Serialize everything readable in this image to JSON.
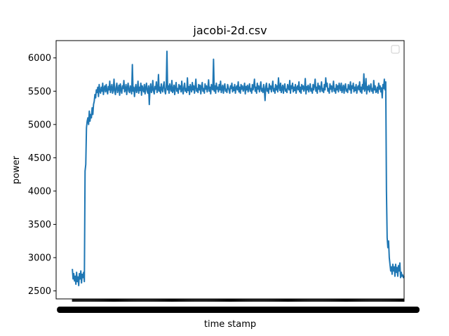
{
  "chart_data": {
    "type": "line",
    "title": "jacobi-2d.csv",
    "xlabel": "time stamp",
    "ylabel": "power",
    "ylim": [
      2380,
      6260
    ],
    "xlim": [
      -23,
      470
    ],
    "yticks": [
      2500,
      3000,
      3500,
      4000,
      4500,
      5000,
      5500,
      6000
    ],
    "grid": false,
    "legend": {
      "placement": "top-right",
      "entries": []
    },
    "x_tick_labels_note": "x tick labels are overlapping and unreadable",
    "series": [
      {
        "color": "#1f77b4",
        "x_start": 0,
        "x_step": 1,
        "values": [
          2830,
          2680,
          2760,
          2650,
          2720,
          2600,
          2780,
          2640,
          2710,
          2580,
          2760,
          2680,
          2800,
          2620,
          2750,
          2700,
          2780,
          2640,
          4300,
          4400,
          4950,
          5050,
          5100,
          5000,
          5200,
          5050,
          5150,
          5100,
          5250,
          5150,
          5300,
          5350,
          5450,
          5400,
          5520,
          5480,
          5560,
          5420,
          5600,
          5500,
          5470,
          5560,
          5500,
          5620,
          5450,
          5540,
          5580,
          5490,
          5600,
          5510,
          5460,
          5570,
          5520,
          5650,
          5480,
          5540,
          5600,
          5470,
          5520,
          5680,
          5500,
          5450,
          5560,
          5620,
          5480,
          5530,
          5590,
          5440,
          5610,
          5520,
          5470,
          5580,
          5540,
          5660,
          5490,
          5520,
          5600,
          5450,
          5550,
          5620,
          5500,
          5480,
          5580,
          5520,
          5460,
          5900,
          5500,
          5560,
          5420,
          5540,
          5600,
          5480,
          5520,
          5650,
          5470,
          5560,
          5510,
          5620,
          5440,
          5580,
          5530,
          5490,
          5600,
          5460,
          5550,
          5620,
          5500,
          5470,
          5580,
          5300,
          5540,
          5610,
          5480,
          5520,
          5660,
          5500,
          5460,
          5570,
          5530,
          5640,
          5480,
          5520,
          5750,
          5500,
          5560,
          5470,
          5610,
          5530,
          5490,
          5580,
          5640,
          5500,
          5460,
          5560,
          6100,
          5520,
          5580,
          5470,
          5610,
          5540,
          5500,
          5660,
          5480,
          5520,
          5590,
          5450,
          5560,
          5630,
          5500,
          5540,
          5470,
          5600,
          5530,
          5580,
          5490,
          5650,
          5520,
          5460,
          5560,
          5620,
          5500,
          5540,
          5480,
          5700,
          5510,
          5570,
          5450,
          5600,
          5540,
          5490,
          5630,
          5520,
          5580,
          5470,
          5560,
          5680,
          5500,
          5540,
          5480,
          5600,
          5520,
          5590,
          5460,
          5560,
          5630,
          5500,
          5540,
          5470,
          5610,
          5530,
          5580,
          5490,
          5550,
          5670,
          5500,
          5560,
          5460,
          5600,
          5540,
          5520,
          5980,
          5500,
          5580,
          5470,
          5620,
          5530,
          5560,
          5490,
          5600,
          5520,
          5650,
          5480,
          5540,
          5590,
          5470,
          5560,
          5610,
          5500,
          5530,
          5480,
          5600,
          5550,
          5520,
          5470,
          5580,
          5540,
          5620,
          5490,
          5560,
          5510,
          5600,
          5470,
          5550,
          5580,
          5520,
          5640,
          5490,
          5560,
          5470,
          5600,
          5530,
          5580,
          5500,
          5540,
          5620,
          5460,
          5570,
          5520,
          5590,
          5490,
          5550,
          5610,
          5500,
          5540,
          5470,
          5600,
          5520,
          5580,
          5680,
          5500,
          5560,
          5470,
          5620,
          5530,
          5580,
          5490,
          5550,
          5640,
          5500,
          5540,
          5480,
          5600,
          5520,
          5360,
          5570,
          5620,
          5500,
          5540,
          5470,
          5610,
          5530,
          5580,
          5490,
          5560,
          5650,
          5500,
          5540,
          5470,
          5600,
          5520,
          5580,
          5490,
          5700,
          5560,
          5510,
          5620,
          5480,
          5540,
          5590,
          5470,
          5560,
          5610,
          5500,
          5530,
          5480,
          5600,
          5550,
          5520,
          5660,
          5470,
          5580,
          5540,
          5620,
          5490,
          5560,
          5510,
          5600,
          5470,
          5550,
          5580,
          5520,
          5640,
          5490,
          5560,
          5470,
          5600,
          5530,
          5580,
          5500,
          5540,
          5690,
          5460,
          5570,
          5520,
          5590,
          5490,
          5550,
          5610,
          5500,
          5540,
          5470,
          5600,
          5520,
          5580,
          5680,
          5500,
          5560,
          5470,
          5620,
          5530,
          5580,
          5490,
          5550,
          5640,
          5500,
          5540,
          5480,
          5600,
          5520,
          5700,
          5570,
          5620,
          5500,
          5540,
          5470,
          5610,
          5530,
          5580,
          5490,
          5560,
          5650,
          5500,
          5540,
          5470,
          5600,
          5520,
          5580,
          5490,
          5620,
          5560,
          5510,
          5620,
          5480,
          5540,
          5590,
          5470,
          5560,
          5610,
          5500,
          5530,
          5480,
          5600,
          5550,
          5520,
          5640,
          5470,
          5580,
          5540,
          5620,
          5490,
          5560,
          5510,
          5600,
          5470,
          5550,
          5580,
          5520,
          5640,
          5490,
          5560,
          5470,
          5600,
          5530,
          5760,
          5500,
          5540,
          5690,
          5460,
          5570,
          5520,
          5590,
          5490,
          5550,
          5610,
          5500,
          5540,
          5470,
          5660,
          5520,
          5580,
          5480,
          5500,
          5560,
          5470,
          5620,
          5530,
          5580,
          5490,
          5550,
          5400,
          5600,
          5540,
          5680,
          5520,
          5640,
          4000,
          3300,
          3150,
          3250,
          3000,
          2900,
          2800,
          2860,
          2750,
          2900,
          2800,
          2860,
          2720,
          2900,
          2780,
          2850,
          2720,
          2880,
          2800,
          2920,
          2700,
          2780,
          2720,
          2740,
          2700,
          2720
        ]
      }
    ]
  }
}
